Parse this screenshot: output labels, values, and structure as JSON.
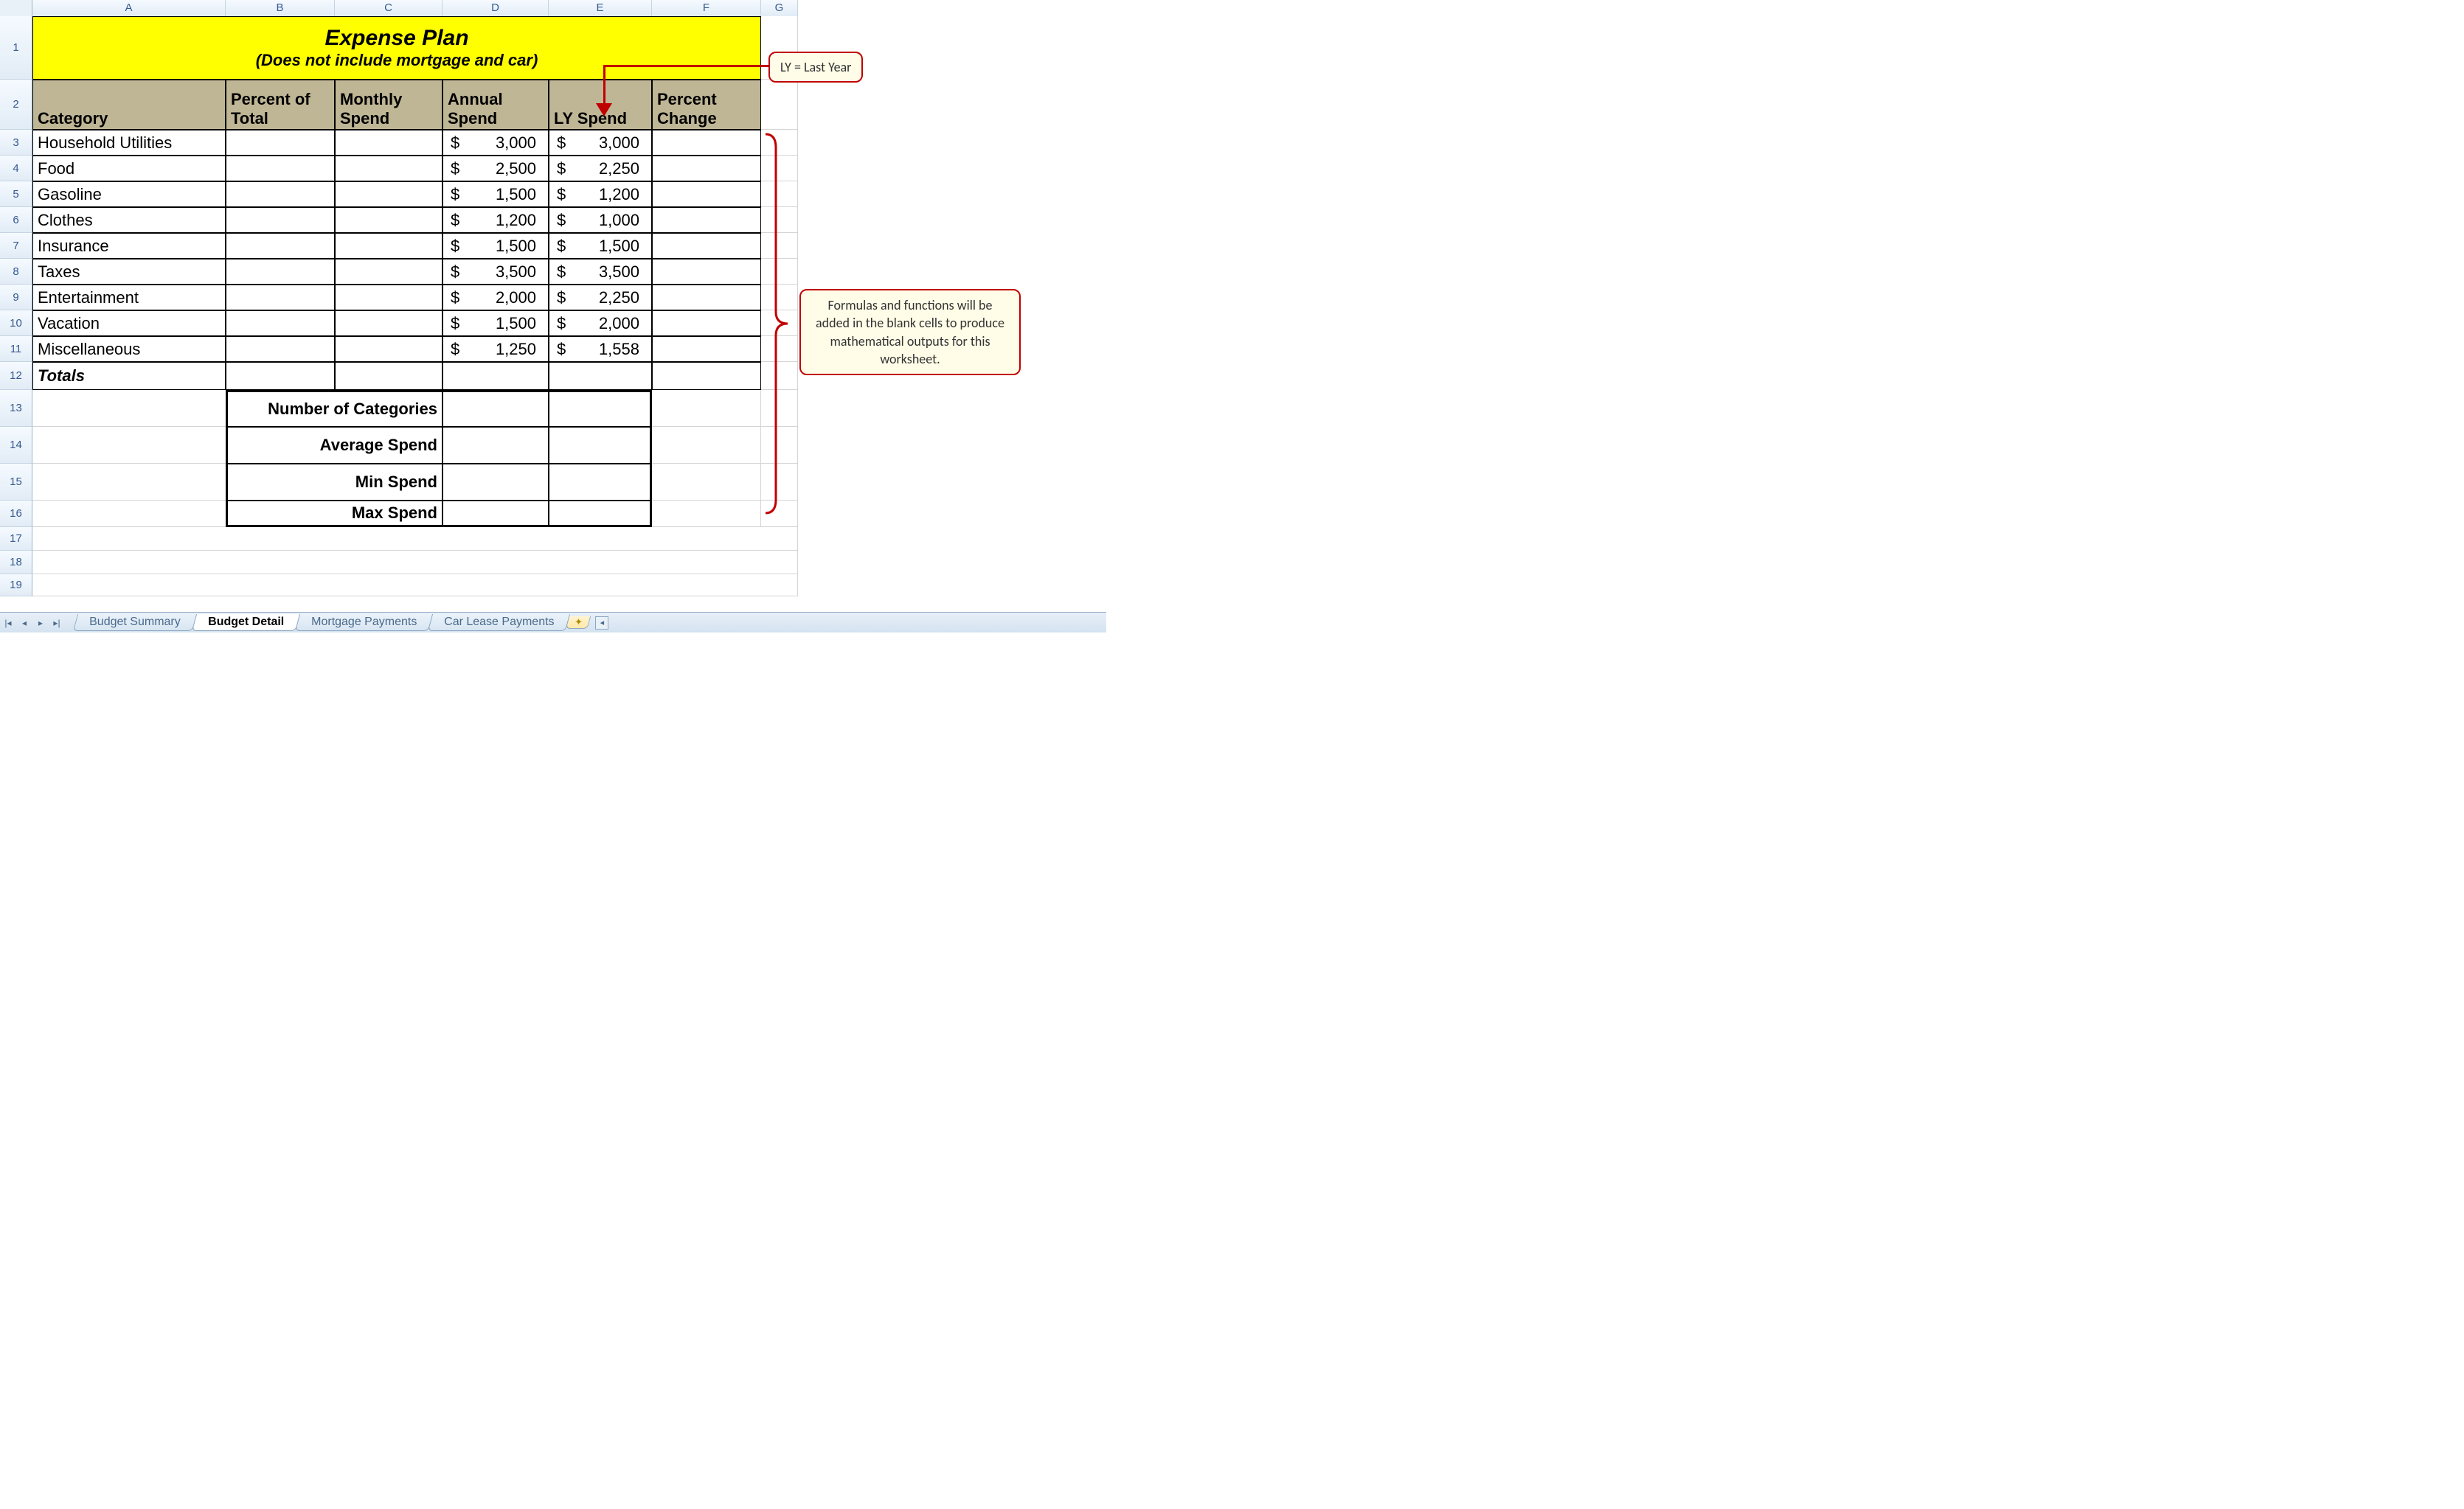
{
  "columns": [
    "A",
    "B",
    "C",
    "D",
    "E",
    "F",
    "G"
  ],
  "row_numbers": [
    1,
    2,
    3,
    4,
    5,
    6,
    7,
    8,
    9,
    10,
    11,
    12,
    13,
    14,
    15,
    16,
    17,
    18,
    19
  ],
  "row_heights": {
    "1": 86,
    "2": 68,
    "3": 35,
    "4": 35,
    "5": 35,
    "6": 35,
    "7": 35,
    "8": 35,
    "9": 35,
    "10": 35,
    "11": 35,
    "12": 38,
    "13": 50,
    "14": 50,
    "15": 50,
    "16": 36,
    "17": 32,
    "18": 32,
    "19": 30
  },
  "title": {
    "main": "Expense Plan",
    "sub": "(Does not include mortgage and car)",
    "bg_color": "#ffff00"
  },
  "headers": {
    "category": "Category",
    "pct": "Percent of Total",
    "monthly": "Monthly Spend",
    "annual": "Annual Spend",
    "ly": "LY Spend",
    "pchange": "Percent Change",
    "bg_color": "#bfb695"
  },
  "data_rows": [
    {
      "cat": "Household Utilities",
      "annual": "3,000",
      "ly": "3,000"
    },
    {
      "cat": "Food",
      "annual": "2,500",
      "ly": "2,250"
    },
    {
      "cat": "Gasoline",
      "annual": "1,500",
      "ly": "1,200"
    },
    {
      "cat": "Clothes",
      "annual": "1,200",
      "ly": "1,000"
    },
    {
      "cat": "Insurance",
      "annual": "1,500",
      "ly": "1,500"
    },
    {
      "cat": "Taxes",
      "annual": "3,500",
      "ly": "3,500"
    },
    {
      "cat": "Entertainment",
      "annual": "2,000",
      "ly": "2,250"
    },
    {
      "cat": "Vacation",
      "annual": "1,500",
      "ly": "2,000"
    },
    {
      "cat": "Miscellaneous",
      "annual": "1,250",
      "ly": "1,558"
    }
  ],
  "totals_label": "Totals",
  "stats": {
    "num_cat": "Number of Categories",
    "avg": "Average Spend",
    "min": "Min Spend",
    "max": "Max Spend"
  },
  "callouts": {
    "ly": "LY = Last Year",
    "formulas": "Formulas and functions will be added in the blank cells to produce mathematical outputs for this worksheet."
  },
  "annotation_color": "#c00000",
  "callout_bg": "#fffde8",
  "tabs": {
    "items": [
      "Budget Summary",
      "Budget Detail",
      "Mortgage Payments",
      "Car Lease Payments"
    ],
    "active_index": 1
  },
  "currency_symbol": "$"
}
